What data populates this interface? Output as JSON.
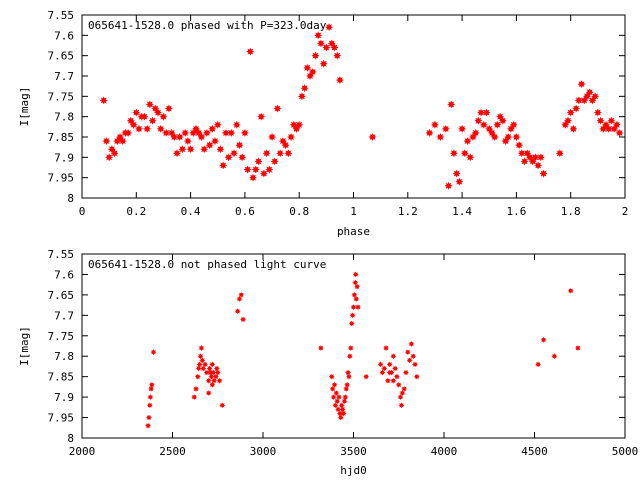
{
  "chart_data": [
    {
      "type": "scatter",
      "title": "065641-1528.0 phased with P=323.0day",
      "xlabel": "phase",
      "ylabel": "I[mag]",
      "xlim": [
        0,
        2
      ],
      "ylim": [
        7.55,
        8
      ],
      "y_inverted": true,
      "grid": false,
      "marker_color": "#ff0000",
      "xticks": [
        0,
        0.2,
        0.4,
        0.6,
        0.8,
        1,
        1.2,
        1.4,
        1.6,
        1.8,
        2
      ],
      "xtick_labels": [
        "0",
        "0.2",
        "0.4",
        "0.6",
        "0.8",
        "1",
        "1.2",
        "1.4",
        "1.6",
        "1.8",
        "2"
      ],
      "yticks": [
        7.55,
        7.6,
        7.65,
        7.7,
        7.75,
        7.8,
        7.85,
        7.9,
        7.95,
        8
      ],
      "ytick_labels": [
        "7.55",
        "7.6",
        "7.65",
        "7.7",
        "7.75",
        "7.8",
        "7.85",
        "7.9",
        "7.95",
        "8"
      ],
      "points": [
        [
          0.08,
          7.76
        ],
        [
          0.09,
          7.86
        ],
        [
          0.1,
          7.9
        ],
        [
          0.11,
          7.88
        ],
        [
          0.12,
          7.89
        ],
        [
          0.13,
          7.86
        ],
        [
          0.14,
          7.85
        ],
        [
          0.15,
          7.86
        ],
        [
          0.16,
          7.84
        ],
        [
          0.17,
          7.84
        ],
        [
          0.18,
          7.81
        ],
        [
          0.19,
          7.82
        ],
        [
          0.2,
          7.79
        ],
        [
          0.21,
          7.83
        ],
        [
          0.22,
          7.8
        ],
        [
          0.23,
          7.8
        ],
        [
          0.24,
          7.83
        ],
        [
          0.25,
          7.77
        ],
        [
          0.26,
          7.81
        ],
        [
          0.27,
          7.78
        ],
        [
          0.28,
          7.79
        ],
        [
          0.29,
          7.83
        ],
        [
          0.3,
          7.8
        ],
        [
          0.31,
          7.84
        ],
        [
          0.32,
          7.78
        ],
        [
          0.33,
          7.84
        ],
        [
          0.34,
          7.85
        ],
        [
          0.35,
          7.89
        ],
        [
          0.36,
          7.85
        ],
        [
          0.37,
          7.88
        ],
        [
          0.38,
          7.84
        ],
        [
          0.39,
          7.86
        ],
        [
          0.4,
          7.88
        ],
        [
          0.41,
          7.84
        ],
        [
          0.42,
          7.83
        ],
        [
          0.43,
          7.84
        ],
        [
          0.44,
          7.85
        ],
        [
          0.45,
          7.88
        ],
        [
          0.46,
          7.84
        ],
        [
          0.47,
          7.87
        ],
        [
          0.48,
          7.83
        ],
        [
          0.49,
          7.86
        ],
        [
          0.5,
          7.82
        ],
        [
          0.51,
          7.88
        ],
        [
          0.52,
          7.92
        ],
        [
          0.53,
          7.84
        ],
        [
          0.54,
          7.9
        ],
        [
          0.55,
          7.84
        ],
        [
          0.56,
          7.89
        ],
        [
          0.57,
          7.82
        ],
        [
          0.58,
          7.87
        ],
        [
          0.59,
          7.9
        ],
        [
          0.6,
          7.84
        ],
        [
          0.61,
          7.93
        ],
        [
          0.62,
          7.64
        ],
        [
          0.63,
          7.95
        ],
        [
          0.64,
          7.93
        ],
        [
          0.65,
          7.91
        ],
        [
          0.66,
          7.8
        ],
        [
          0.67,
          7.94
        ],
        [
          0.68,
          7.89
        ],
        [
          0.69,
          7.93
        ],
        [
          0.7,
          7.85
        ],
        [
          0.71,
          7.91
        ],
        [
          0.72,
          7.78
        ],
        [
          0.73,
          7.89
        ],
        [
          0.74,
          7.86
        ],
        [
          0.75,
          7.87
        ],
        [
          0.76,
          7.89
        ],
        [
          0.77,
          7.85
        ],
        [
          0.78,
          7.82
        ],
        [
          0.79,
          7.83
        ],
        [
          0.8,
          7.82
        ],
        [
          0.81,
          7.75
        ],
        [
          0.82,
          7.73
        ],
        [
          0.83,
          7.68
        ],
        [
          0.84,
          7.7
        ],
        [
          0.85,
          7.69
        ],
        [
          0.86,
          7.65
        ],
        [
          0.87,
          7.6
        ],
        [
          0.88,
          7.62
        ],
        [
          0.89,
          7.67
        ],
        [
          0.9,
          7.63
        ],
        [
          0.91,
          7.58
        ],
        [
          0.92,
          7.62
        ],
        [
          0.93,
          7.63
        ],
        [
          0.94,
          7.65
        ],
        [
          0.95,
          7.71
        ],
        [
          1.07,
          7.85
        ],
        [
          1.28,
          7.84
        ],
        [
          1.3,
          7.82
        ],
        [
          1.32,
          7.85
        ],
        [
          1.34,
          7.83
        ],
        [
          1.35,
          7.97
        ],
        [
          1.36,
          7.77
        ],
        [
          1.37,
          7.89
        ],
        [
          1.38,
          7.94
        ],
        [
          1.39,
          7.96
        ],
        [
          1.4,
          7.83
        ],
        [
          1.41,
          7.89
        ],
        [
          1.42,
          7.86
        ],
        [
          1.43,
          7.9
        ],
        [
          1.44,
          7.85
        ],
        [
          1.45,
          7.84
        ],
        [
          1.46,
          7.81
        ],
        [
          1.47,
          7.79
        ],
        [
          1.48,
          7.82
        ],
        [
          1.49,
          7.79
        ],
        [
          1.5,
          7.83
        ],
        [
          1.51,
          7.84
        ],
        [
          1.52,
          7.85
        ],
        [
          1.53,
          7.82
        ],
        [
          1.54,
          7.8
        ],
        [
          1.55,
          7.81
        ],
        [
          1.56,
          7.86
        ],
        [
          1.57,
          7.85
        ],
        [
          1.58,
          7.83
        ],
        [
          1.59,
          7.82
        ],
        [
          1.6,
          7.85
        ],
        [
          1.61,
          7.87
        ],
        [
          1.62,
          7.89
        ],
        [
          1.63,
          7.91
        ],
        [
          1.64,
          7.89
        ],
        [
          1.65,
          7.9
        ],
        [
          1.66,
          7.91
        ],
        [
          1.67,
          7.9
        ],
        [
          1.68,
          7.92
        ],
        [
          1.69,
          7.9
        ],
        [
          1.7,
          7.94
        ],
        [
          1.76,
          7.89
        ],
        [
          1.78,
          7.82
        ],
        [
          1.79,
          7.81
        ],
        [
          1.8,
          7.79
        ],
        [
          1.81,
          7.83
        ],
        [
          1.82,
          7.78
        ],
        [
          1.83,
          7.76
        ],
        [
          1.84,
          7.72
        ],
        [
          1.85,
          7.76
        ],
        [
          1.86,
          7.75
        ],
        [
          1.87,
          7.74
        ],
        [
          1.88,
          7.76
        ],
        [
          1.89,
          7.75
        ],
        [
          1.9,
          7.79
        ],
        [
          1.91,
          7.81
        ],
        [
          1.92,
          7.83
        ],
        [
          1.93,
          7.82
        ],
        [
          1.94,
          7.83
        ],
        [
          1.95,
          7.81
        ],
        [
          1.96,
          7.83
        ],
        [
          1.97,
          7.82
        ],
        [
          1.98,
          7.84
        ]
      ]
    },
    {
      "type": "scatter",
      "title": "065641-1528.0 not phased light curve",
      "xlabel": "hjd0",
      "ylabel": "I[mag]",
      "xlim": [
        2000,
        5000
      ],
      "ylim": [
        7.55,
        8
      ],
      "y_inverted": true,
      "grid": false,
      "marker_color": "#ff0000",
      "xticks": [
        2000,
        2500,
        3000,
        3500,
        4000,
        4500,
        5000
      ],
      "xtick_labels": [
        "2000",
        "2500",
        "3000",
        "3500",
        "4000",
        "4500",
        "5000"
      ],
      "yticks": [
        7.55,
        7.6,
        7.65,
        7.7,
        7.75,
        7.8,
        7.85,
        7.9,
        7.95,
        8
      ],
      "ytick_labels": [
        "7.55",
        "7.6",
        "7.65",
        "7.7",
        "7.75",
        "7.8",
        "7.85",
        "7.9",
        "7.95",
        "8"
      ],
      "points": [
        [
          2365,
          7.97
        ],
        [
          2370,
          7.95
        ],
        [
          2375,
          7.92
        ],
        [
          2378,
          7.9
        ],
        [
          2382,
          7.88
        ],
        [
          2386,
          7.87
        ],
        [
          2395,
          7.79
        ],
        [
          2620,
          7.9
        ],
        [
          2630,
          7.88
        ],
        [
          2640,
          7.85
        ],
        [
          2645,
          7.83
        ],
        [
          2650,
          7.82
        ],
        [
          2655,
          7.8
        ],
        [
          2660,
          7.78
        ],
        [
          2665,
          7.81
        ],
        [
          2670,
          7.83
        ],
        [
          2680,
          7.82
        ],
        [
          2690,
          7.84
        ],
        [
          2700,
          7.86
        ],
        [
          2705,
          7.83
        ],
        [
          2710,
          7.84
        ],
        [
          2715,
          7.85
        ],
        [
          2720,
          7.82
        ],
        [
          2725,
          7.84
        ],
        [
          2730,
          7.86
        ],
        [
          2740,
          7.85
        ],
        [
          2745,
          7.83
        ],
        [
          2750,
          7.84
        ],
        [
          2760,
          7.86
        ],
        [
          2775,
          7.92
        ],
        [
          2700,
          7.89
        ],
        [
          2720,
          7.87
        ],
        [
          2860,
          7.69
        ],
        [
          2870,
          7.66
        ],
        [
          2880,
          7.65
        ],
        [
          2890,
          7.71
        ],
        [
          3320,
          7.78
        ],
        [
          3380,
          7.85
        ],
        [
          3385,
          7.88
        ],
        [
          3390,
          7.9
        ],
        [
          3395,
          7.87
        ],
        [
          3400,
          7.92
        ],
        [
          3405,
          7.89
        ],
        [
          3410,
          7.91
        ],
        [
          3415,
          7.93
        ],
        [
          3420,
          7.9
        ],
        [
          3425,
          7.94
        ],
        [
          3430,
          7.95
        ],
        [
          3435,
          7.92
        ],
        [
          3440,
          7.93
        ],
        [
          3445,
          7.94
        ],
        [
          3450,
          7.91
        ],
        [
          3455,
          7.9
        ],
        [
          3460,
          7.88
        ],
        [
          3465,
          7.87
        ],
        [
          3470,
          7.84
        ],
        [
          3475,
          7.85
        ],
        [
          3480,
          7.8
        ],
        [
          3485,
          7.78
        ],
        [
          3490,
          7.72
        ],
        [
          3495,
          7.7
        ],
        [
          3500,
          7.68
        ],
        [
          3505,
          7.65
        ],
        [
          3510,
          7.62
        ],
        [
          3512,
          7.6
        ],
        [
          3515,
          7.66
        ],
        [
          3520,
          7.63
        ],
        [
          3525,
          7.68
        ],
        [
          3570,
          7.85
        ],
        [
          3650,
          7.82
        ],
        [
          3660,
          7.84
        ],
        [
          3670,
          7.83
        ],
        [
          3680,
          7.78
        ],
        [
          3690,
          7.86
        ],
        [
          3700,
          7.82
        ],
        [
          3710,
          7.84
        ],
        [
          3720,
          7.8
        ],
        [
          3730,
          7.83
        ],
        [
          3740,
          7.85
        ],
        [
          3750,
          7.87
        ],
        [
          3760,
          7.9
        ],
        [
          3765,
          7.92
        ],
        [
          3770,
          7.89
        ],
        [
          3780,
          7.88
        ],
        [
          3790,
          7.84
        ],
        [
          3800,
          7.79
        ],
        [
          3810,
          7.81
        ],
        [
          3820,
          7.77
        ],
        [
          3830,
          7.8
        ],
        [
          3840,
          7.82
        ],
        [
          3850,
          7.85
        ],
        [
          3700,
          7.84
        ],
        [
          3720,
          7.86
        ],
        [
          4520,
          7.82
        ],
        [
          4550,
          7.76
        ],
        [
          4610,
          7.8
        ],
        [
          4700,
          7.64
        ],
        [
          4740,
          7.78
        ]
      ]
    }
  ]
}
